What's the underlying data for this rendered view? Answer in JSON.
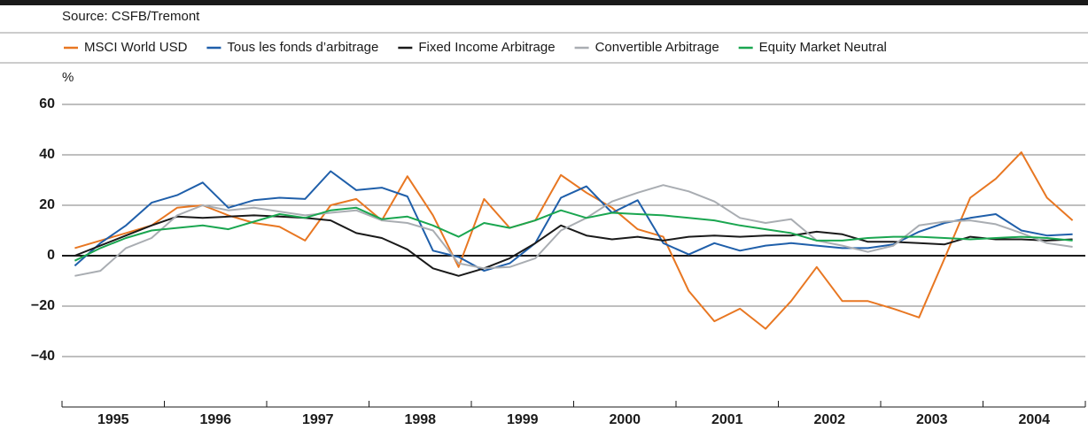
{
  "chart_data": {
    "type": "line",
    "source": "Source: CSFB/Tremont",
    "y_label": "%",
    "categories": [
      "1995",
      null,
      null,
      null,
      "1996",
      null,
      null,
      null,
      "1997",
      null,
      null,
      null,
      "1998",
      null,
      null,
      null,
      "1999",
      null,
      null,
      null,
      "2000",
      null,
      null,
      null,
      "2001",
      null,
      null,
      null,
      "2002",
      null,
      null,
      null,
      "2003",
      null,
      null,
      null,
      "2004",
      null,
      null,
      null
    ],
    "ylim": [
      -60,
      60
    ],
    "yticks": [
      {
        "value": -40,
        "label": "−40"
      },
      {
        "value": -20,
        "label": "−20"
      },
      0,
      20,
      40,
      60
    ],
    "grid": true,
    "legend": "top",
    "series": [
      {
        "name": "MSCI World USD",
        "color": "#e87722",
        "values": [
          3,
          6,
          9,
          12,
          19,
          20,
          16,
          13,
          11.5,
          6,
          20,
          22.5,
          14,
          31.5,
          16,
          -4.5,
          22.5,
          11,
          14,
          32,
          25,
          19,
          10.5,
          7.5,
          -14,
          -26,
          -21,
          -29,
          -18,
          -4.5,
          -18,
          -18,
          -21,
          -24.5,
          -1,
          23,
          30.5,
          41,
          23,
          14
        ]
      },
      {
        "name": "Tous les fonds d’arbitrage",
        "color": "#1f5faa",
        "values": [
          -4,
          5,
          12,
          21,
          24,
          29,
          19,
          22,
          23,
          22.5,
          33.5,
          26,
          27,
          23.5,
          2,
          -0.5,
          -6,
          -3,
          5,
          23,
          27.5,
          17,
          22,
          5,
          0.5,
          5,
          2,
          4,
          5,
          4,
          3,
          3,
          4.5,
          9.5,
          13,
          15,
          16.5,
          10,
          8,
          8.5
        ]
      },
      {
        "name": "Fixed Income Arbitrage",
        "color": "#1a1a1a",
        "values": [
          0,
          4,
          8,
          12,
          15.5,
          15,
          15.5,
          16,
          15.5,
          15,
          14,
          9,
          7,
          2.5,
          -5,
          -8,
          -5,
          -1,
          5,
          12,
          8,
          6.5,
          7.5,
          6,
          7.5,
          8,
          7.5,
          8,
          8,
          9.5,
          8.5,
          5.5,
          5.5,
          5,
          4.5,
          7.5,
          6.5,
          6.5,
          6,
          6.5
        ]
      },
      {
        "name": "Convertible Arbitrage",
        "color": "#a9adb2",
        "values": [
          -8,
          -6,
          3,
          7,
          16,
          20,
          18,
          19,
          17.5,
          16,
          17,
          18,
          14,
          13,
          10,
          -3,
          -5,
          -4.5,
          -1,
          10,
          15,
          21.5,
          25,
          28,
          25.5,
          21.5,
          15,
          13,
          14.5,
          6,
          4,
          1.5,
          4,
          12,
          13.5,
          14,
          12.5,
          9,
          5,
          3.5
        ]
      },
      {
        "name": "Equity Market Neutral",
        "color": "#1aa650",
        "values": [
          -2,
          3,
          7,
          10,
          11,
          12,
          10.5,
          13.5,
          16.5,
          15,
          18,
          19,
          14.5,
          15.5,
          12,
          7.5,
          13,
          11,
          14,
          18,
          15,
          17,
          16.5,
          16,
          15,
          14,
          12,
          10.5,
          9,
          6,
          6,
          7,
          7.5,
          7.5,
          7,
          6.5,
          7,
          7.5,
          7,
          6
        ]
      }
    ]
  }
}
